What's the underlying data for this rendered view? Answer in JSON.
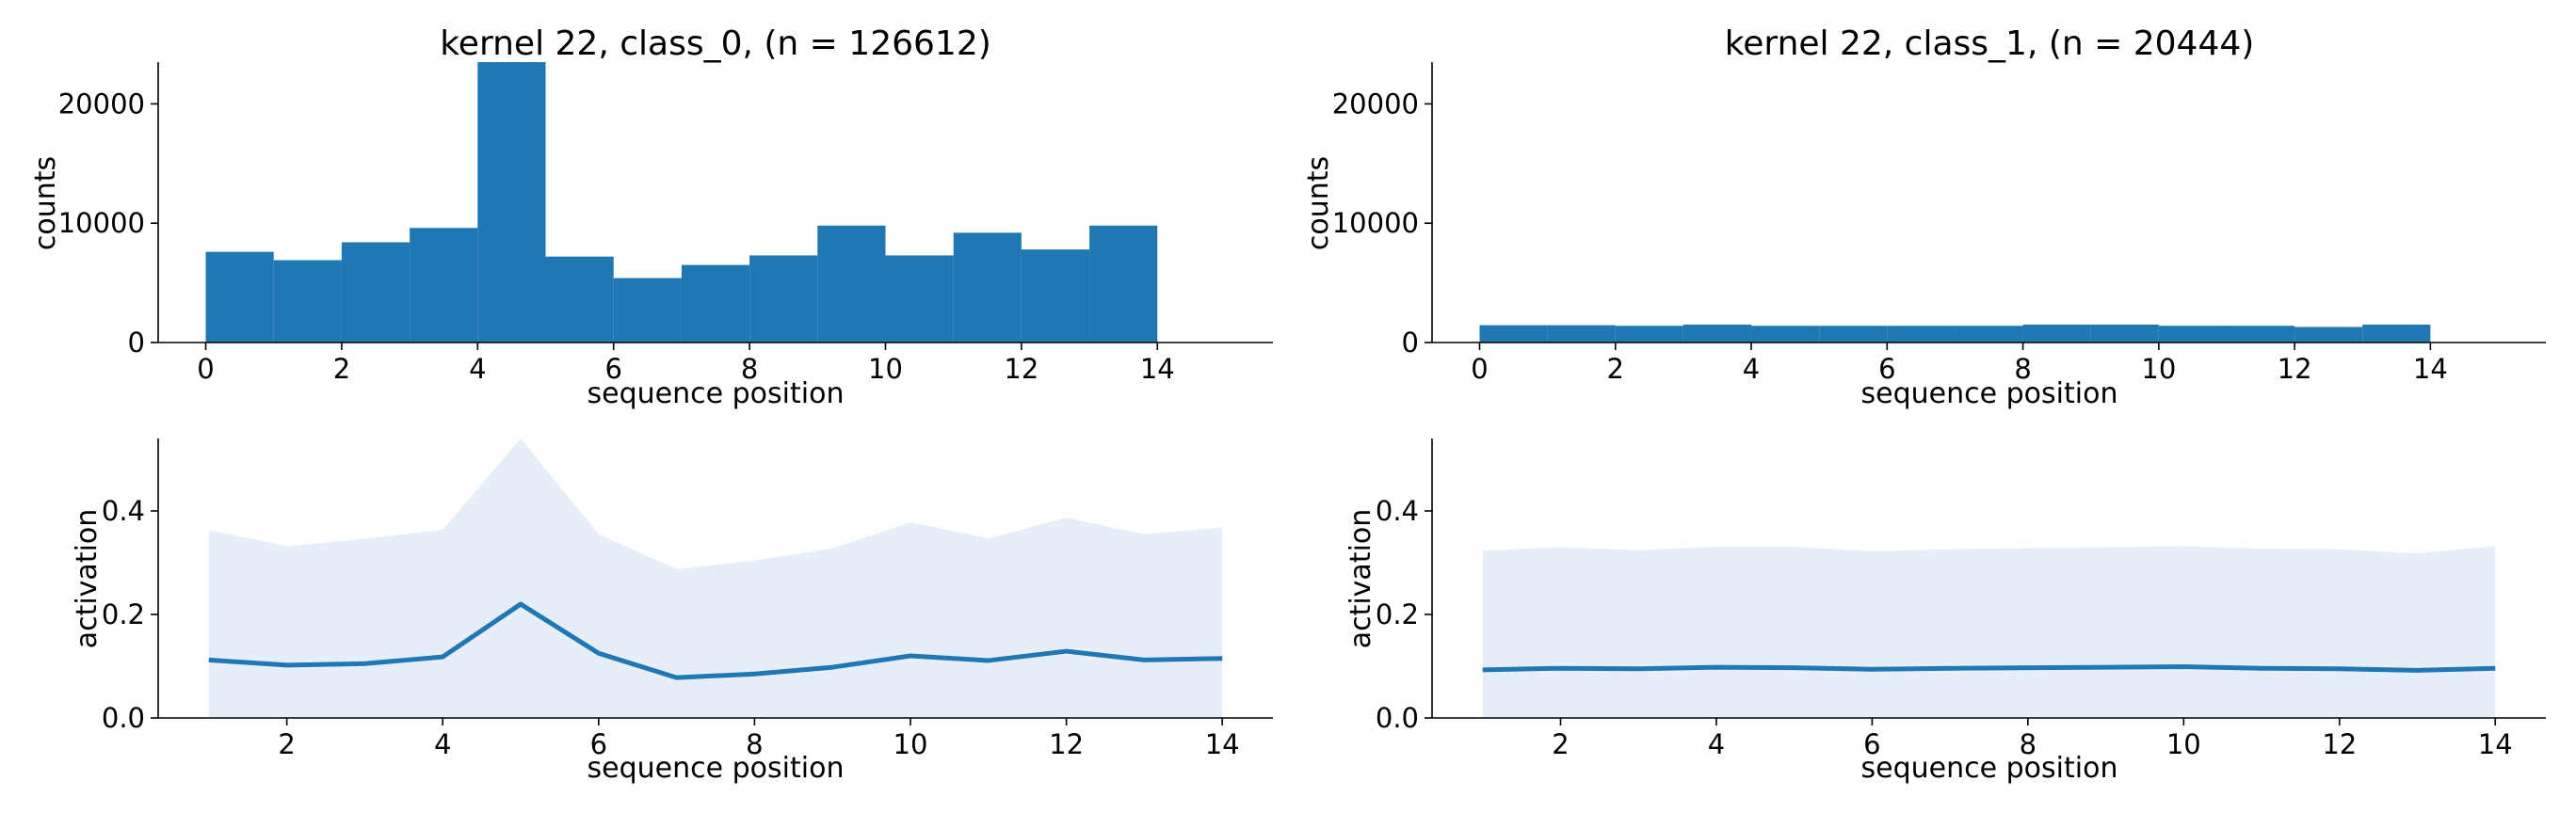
{
  "colors": {
    "bar": "#1f77b4",
    "line": "#1f77b4",
    "band": "#e6eff8",
    "axis": "#000000"
  },
  "chart_data": [
    {
      "type": "bar",
      "title": "kernel 22, class_0, (n = 126612)",
      "xlabel": "sequence position",
      "ylabel": "counts",
      "xlim": [
        -0.7,
        15.7
      ],
      "ylim": [
        0,
        23500
      ],
      "xticks": [
        "0",
        "2",
        "4",
        "6",
        "8",
        "10",
        "12",
        "14"
      ],
      "yticks": [
        "0",
        "10000",
        "20000"
      ],
      "bin_edges": [
        0,
        1,
        2,
        3,
        4,
        5,
        6,
        7,
        8,
        9,
        10,
        11,
        12,
        13,
        14
      ],
      "values": [
        7600,
        6900,
        8400,
        9600,
        23500,
        7200,
        5400,
        6500,
        7300,
        9800,
        7300,
        9200,
        7800,
        9800
      ]
    },
    {
      "type": "bar",
      "title": "kernel 22, class_1, (n = 20444)",
      "xlabel": "sequence position",
      "ylabel": "counts",
      "xlim": [
        -0.7,
        15.7
      ],
      "ylim": [
        0,
        23500
      ],
      "xticks": [
        "0",
        "2",
        "4",
        "6",
        "8",
        "10",
        "12",
        "14"
      ],
      "yticks": [
        "0",
        "10000",
        "20000"
      ],
      "bin_edges": [
        0,
        1,
        2,
        3,
        4,
        5,
        6,
        7,
        8,
        9,
        10,
        11,
        12,
        13,
        14
      ],
      "values": [
        1450,
        1450,
        1400,
        1500,
        1400,
        1400,
        1400,
        1400,
        1500,
        1500,
        1400,
        1400,
        1300,
        1500
      ]
    },
    {
      "type": "area",
      "title": "",
      "xlabel": "sequence position",
      "ylabel": "activation",
      "xlim": [
        0.35,
        14.65
      ],
      "ylim": [
        0,
        0.54
      ],
      "xticks": [
        "2",
        "4",
        "6",
        "8",
        "10",
        "12",
        "14"
      ],
      "yticks": [
        "0.0",
        "0.2",
        "0.4"
      ],
      "x": [
        1,
        2,
        3,
        4,
        5,
        6,
        7,
        8,
        9,
        10,
        11,
        12,
        13,
        14
      ],
      "mean": [
        0.112,
        0.102,
        0.105,
        0.118,
        0.22,
        0.125,
        0.078,
        0.085,
        0.098,
        0.12,
        0.111,
        0.129,
        0.112,
        0.115
      ],
      "upper": [
        0.363,
        0.332,
        0.346,
        0.364,
        0.54,
        0.355,
        0.288,
        0.304,
        0.328,
        0.378,
        0.347,
        0.387,
        0.355,
        0.368
      ],
      "lower": [
        0,
        0,
        0,
        0,
        0,
        0,
        0,
        0,
        0,
        0,
        0,
        0,
        0,
        0
      ]
    },
    {
      "type": "area",
      "title": "",
      "xlabel": "sequence position",
      "ylabel": "activation",
      "xlim": [
        0.35,
        14.65
      ],
      "ylim": [
        0,
        0.54
      ],
      "xticks": [
        "2",
        "4",
        "6",
        "8",
        "10",
        "12",
        "14"
      ],
      "yticks": [
        "0.0",
        "0.2",
        "0.4"
      ],
      "x": [
        1,
        2,
        3,
        4,
        5,
        6,
        7,
        8,
        9,
        10,
        11,
        12,
        13,
        14
      ],
      "mean": [
        0.093,
        0.096,
        0.095,
        0.098,
        0.097,
        0.094,
        0.096,
        0.097,
        0.098,
        0.099,
        0.096,
        0.095,
        0.092,
        0.096
      ],
      "upper": [
        0.323,
        0.33,
        0.324,
        0.331,
        0.331,
        0.322,
        0.326,
        0.328,
        0.33,
        0.332,
        0.327,
        0.326,
        0.318,
        0.332
      ],
      "lower": [
        0,
        0,
        0,
        0,
        0,
        0,
        0,
        0,
        0,
        0,
        0,
        0,
        0,
        0
      ]
    }
  ]
}
